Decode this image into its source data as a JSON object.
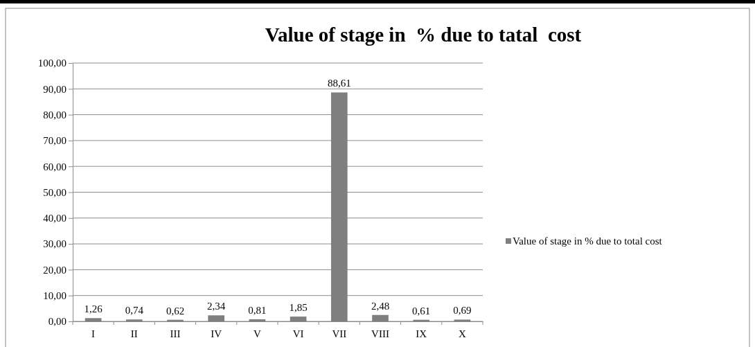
{
  "chart_data": {
    "type": "bar",
    "title": "Value of stage in  % due to tatal  cost",
    "categories": [
      "I",
      "II",
      "III",
      "IV",
      "V",
      "VI",
      "VII",
      "VIII",
      "IX",
      "X"
    ],
    "series": [
      {
        "name": "Value of stage in % due to total cost",
        "color": "#7f7f7f",
        "values": [
          1.26,
          0.74,
          0.62,
          2.34,
          0.81,
          1.85,
          88.61,
          2.48,
          0.61,
          0.69
        ],
        "value_labels": [
          "1,26",
          "0,74",
          "0,62",
          "2,34",
          "0,81",
          "1,85",
          "88,61",
          "2,48",
          "0,61",
          "0,69"
        ]
      }
    ],
    "ylim": [
      0,
      100
    ],
    "yticks": [
      {
        "value": 0,
        "label": "0,00"
      },
      {
        "value": 10,
        "label": "10,00"
      },
      {
        "value": 20,
        "label": "20,00"
      },
      {
        "value": 30,
        "label": "30,00"
      },
      {
        "value": 40,
        "label": "40,00"
      },
      {
        "value": 50,
        "label": "50,00"
      },
      {
        "value": 60,
        "label": "60,00"
      },
      {
        "value": 70,
        "label": "70,00"
      },
      {
        "value": 80,
        "label": "80,00"
      },
      {
        "value": 90,
        "label": "90,00"
      },
      {
        "value": 100,
        "label": "100,00"
      }
    ],
    "grid": "y",
    "legend": "right"
  }
}
